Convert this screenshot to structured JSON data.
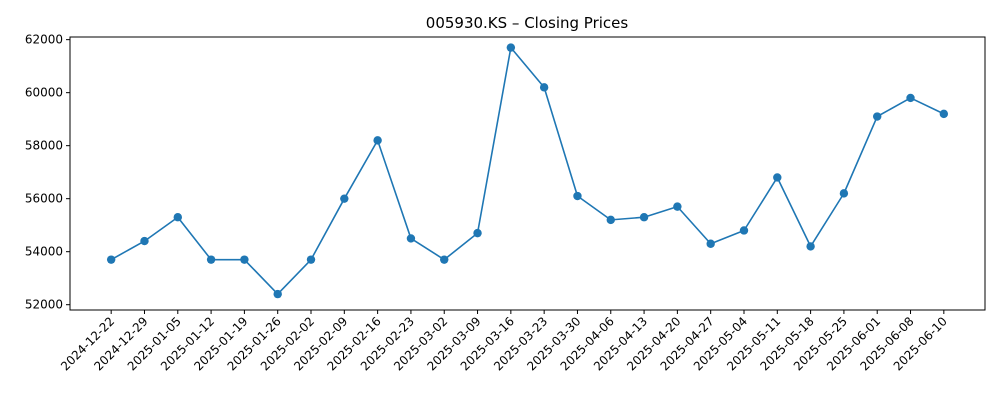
{
  "chart_data": {
    "type": "line",
    "title": "005930.KS – Closing Prices",
    "xlabel": "",
    "ylabel": "",
    "x": [
      "2024-12-22",
      "2024-12-29",
      "2025-01-05",
      "2025-01-12",
      "2025-01-19",
      "2025-01-26",
      "2025-02-02",
      "2025-02-09",
      "2025-02-16",
      "2025-02-23",
      "2025-03-02",
      "2025-03-09",
      "2025-03-16",
      "2025-03-23",
      "2025-03-30",
      "2025-04-06",
      "2025-04-13",
      "2025-04-20",
      "2025-04-27",
      "2025-05-04",
      "2025-05-11",
      "2025-05-18",
      "2025-05-25",
      "2025-06-01",
      "2025-06-08",
      "2025-06-10"
    ],
    "series": [
      {
        "values": [
          53700,
          54400,
          55300,
          53700,
          53700,
          52400,
          53700,
          56000,
          58200,
          54500,
          53700,
          54700,
          61700,
          60200,
          56100,
          55200,
          55300,
          55700,
          54300,
          54800,
          56800,
          54200,
          56200,
          59100,
          59800,
          59200
        ],
        "color": "#1f77b4",
        "marker": "circle"
      }
    ],
    "yticks": [
      52000,
      54000,
      56000,
      58000,
      60000,
      62000
    ],
    "ylim": [
      51800,
      62100
    ],
    "grid": false,
    "legend": "none"
  }
}
